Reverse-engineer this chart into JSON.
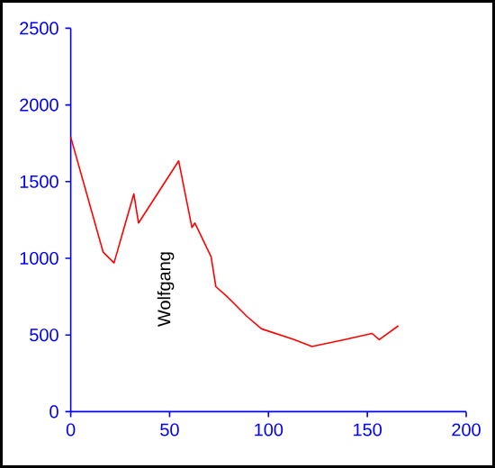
{
  "chart_data": {
    "type": "line",
    "x": [
      0,
      16.4,
      21.9,
      31.9,
      34.3,
      54.6,
      61.3,
      62.8,
      71,
      73.4,
      79.5,
      89.2,
      96.5,
      112.9,
      122,
      138.7,
      152.4,
      156,
      165.7
    ],
    "series": [
      {
        "color": "#ff0000",
        "values": [
          1790,
          1040,
          970,
          1420,
          1230,
          1635,
          1200,
          1230,
          1010,
          815,
          745,
          620,
          540,
          470,
          425,
          470,
          510,
          470,
          560
        ]
      }
    ],
    "xlim": [
      0,
      200
    ],
    "xticks": [
      0,
      50,
      100,
      150,
      200
    ],
    "ylim": [
      0,
      2500
    ],
    "yticks": [
      0,
      500,
      1000,
      1500,
      2000,
      2500
    ],
    "annotations": [
      "Wolfgang"
    ]
  }
}
